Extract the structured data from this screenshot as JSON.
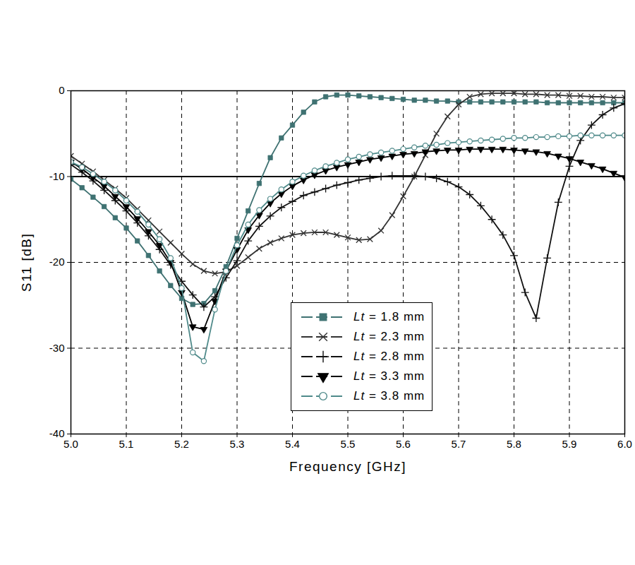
{
  "chart_data": {
    "type": "line",
    "x_label": "Frequency [GHz]",
    "y_label": "S11 [dB]",
    "xlim": [
      5.0,
      6.0
    ],
    "xticks": [
      {
        "value": 5.0,
        "label": "5.0"
      },
      5.1,
      5.2,
      5.3,
      5.4,
      5.5,
      5.6,
      5.7,
      5.8,
      5.9,
      {
        "value": 6.0,
        "label": "6.0"
      }
    ],
    "ylim": [
      -40,
      0
    ],
    "yticks": [
      -40,
      -30,
      -20,
      -10,
      0
    ],
    "grid": true,
    "legend": "bottom",
    "reference_line_y": -10,
    "x": [
      5.0,
      5.02,
      5.04,
      5.06,
      5.08,
      5.1,
      5.12,
      5.14,
      5.16,
      5.18,
      5.2,
      5.22,
      5.24,
      5.26,
      5.28,
      5.3,
      5.32,
      5.34,
      5.36,
      5.38,
      5.4,
      5.42,
      5.44,
      5.46,
      5.48,
      5.5,
      5.52,
      5.54,
      5.56,
      5.58,
      5.6,
      5.62,
      5.64,
      5.66,
      5.68,
      5.7,
      5.72,
      5.74,
      5.76,
      5.78,
      5.8,
      5.82,
      5.84,
      5.86,
      5.88,
      5.9,
      5.92,
      5.94,
      5.96,
      5.98,
      6.0
    ],
    "series": [
      {
        "name": "Lt = 1.8 mm",
        "color": "#3f7272",
        "marker": "square",
        "values": [
          -10.3,
          -11.3,
          -12.4,
          -13.5,
          -14.8,
          -16.0,
          -17.5,
          -19.2,
          -21.0,
          -22.7,
          -24.2,
          -24.9,
          -24.8,
          -23.3,
          -20.5,
          -17.2,
          -14.0,
          -10.8,
          -7.8,
          -5.5,
          -4.0,
          -2.5,
          -1.3,
          -0.7,
          -0.5,
          -0.5,
          -0.6,
          -0.7,
          -0.8,
          -0.9,
          -1.0,
          -1.1,
          -1.1,
          -1.2,
          -1.2,
          -1.3,
          -1.3,
          -1.3,
          -1.3,
          -1.3,
          -1.3,
          -1.3,
          -1.3,
          -1.4,
          -1.4,
          -1.4,
          -1.4,
          -1.4,
          -1.4,
          -1.4,
          -1.4
        ]
      },
      {
        "name": "Lt = 2.3 mm",
        "color": "#333333",
        "marker": "cross",
        "values": [
          -7.6,
          -8.5,
          -9.4,
          -10.4,
          -11.4,
          -12.5,
          -13.8,
          -15.1,
          -16.4,
          -17.7,
          -19.0,
          -20.2,
          -21.0,
          -21.3,
          -21.1,
          -20.4,
          -19.4,
          -18.4,
          -17.7,
          -17.2,
          -16.8,
          -16.6,
          -16.5,
          -16.5,
          -16.8,
          -17.1,
          -17.4,
          -17.3,
          -16.3,
          -14.5,
          -12.3,
          -10.0,
          -7.5,
          -5.0,
          -3.0,
          -1.6,
          -0.7,
          -0.4,
          -0.3,
          -0.3,
          -0.3,
          -0.4,
          -0.4,
          -0.5,
          -0.5,
          -0.6,
          -0.6,
          -0.7,
          -0.7,
          -0.8,
          -0.8
        ]
      },
      {
        "name": "Lt = 2.8 mm",
        "color": "#111111",
        "marker": "plus",
        "values": [
          -8.6,
          -9.5,
          -10.5,
          -11.6,
          -12.8,
          -14.0,
          -15.4,
          -16.9,
          -18.5,
          -20.3,
          -22.2,
          -23.8,
          -25.2,
          -24.0,
          -21.8,
          -19.8,
          -17.5,
          -15.8,
          -14.6,
          -13.6,
          -12.9,
          -12.2,
          -11.8,
          -11.4,
          -11.0,
          -10.7,
          -10.4,
          -10.2,
          -10.0,
          -9.9,
          -9.9,
          -9.9,
          -10.0,
          -10.2,
          -10.6,
          -11.2,
          -12.1,
          -13.4,
          -15.0,
          -16.8,
          -19.2,
          -23.5,
          -26.5,
          -19.5,
          -13.0,
          -8.8,
          -5.8,
          -4.0,
          -2.8,
          -2.0,
          -1.5
        ]
      },
      {
        "name": "Lt = 3.3 mm",
        "color": "#000000",
        "marker": "triangle-down",
        "values": [
          -8.3,
          -9.1,
          -10.1,
          -11.1,
          -12.3,
          -13.5,
          -14.9,
          -16.4,
          -18.0,
          -20.0,
          -23.5,
          -27.5,
          -27.8,
          -24.5,
          -21.0,
          -18.5,
          -16.2,
          -14.5,
          -13.1,
          -12.0,
          -11.1,
          -10.4,
          -9.8,
          -9.3,
          -8.9,
          -8.6,
          -8.3,
          -8.0,
          -7.8,
          -7.6,
          -7.4,
          -7.3,
          -7.1,
          -7.0,
          -6.9,
          -6.9,
          -6.8,
          -6.8,
          -6.8,
          -6.8,
          -6.9,
          -7.0,
          -7.1,
          -7.3,
          -7.6,
          -7.9,
          -8.3,
          -8.7,
          -9.1,
          -9.6,
          -10.1
        ]
      },
      {
        "name": "Lt = 3.8 mm",
        "color": "#4f8a8a",
        "marker": "circle-open",
        "values": [
          -8.3,
          -8.9,
          -9.7,
          -10.6,
          -11.6,
          -12.8,
          -14.1,
          -15.6,
          -17.3,
          -19.5,
          -23.0,
          -30.5,
          -31.5,
          -25.5,
          -21.0,
          -18.0,
          -15.6,
          -13.9,
          -12.6,
          -11.5,
          -10.6,
          -9.9,
          -9.3,
          -8.8,
          -8.4,
          -8.0,
          -7.7,
          -7.4,
          -7.2,
          -7.0,
          -6.8,
          -6.6,
          -6.4,
          -6.3,
          -6.1,
          -6.0,
          -5.9,
          -5.8,
          -5.7,
          -5.6,
          -5.5,
          -5.5,
          -5.4,
          -5.4,
          -5.3,
          -5.3,
          -5.2,
          -5.2,
          -5.2,
          -5.2,
          -5.2
        ]
      }
    ]
  }
}
